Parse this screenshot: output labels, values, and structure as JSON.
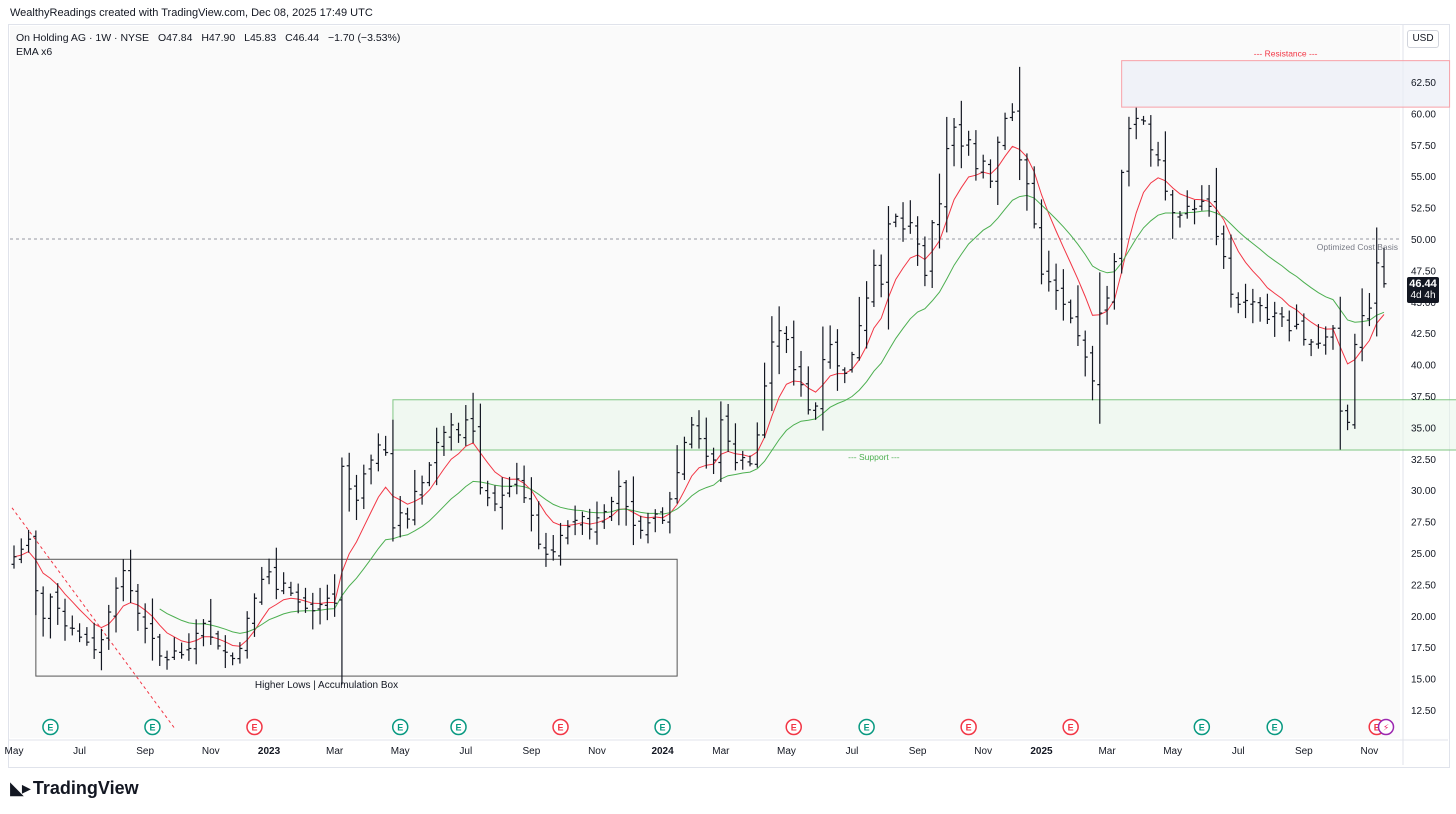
{
  "header": {
    "caption": "WealthyReadings created with TradingView.com, Dec 08, 2025 17:49 UTC"
  },
  "legend": {
    "symbol": "On Holding AG · 1W · NYSE",
    "open": "O47.84",
    "high": "H47.90",
    "low": "L45.83",
    "close": "C46.44",
    "change": "−1.70 (−3.53%)",
    "indicator": "EMA x6"
  },
  "toolbar": {
    "currency": "USD"
  },
  "price_badge": {
    "price": "46.44",
    "countdown": "4d 4h"
  },
  "footer": {
    "brand": "TradingView"
  },
  "colors": {
    "candles": "#131722",
    "ema_fast": "#f23645",
    "ema_slow": "#4caf50",
    "resistance_box_border": "#f7a1a8",
    "support_box_border": "#81c784",
    "accum_box_border": "#555555",
    "earnings_up": "#089981",
    "earnings_down": "#f23645"
  },
  "chart_data": {
    "type": "candlestick-ohlc-bars",
    "title": "On Holding AG · 1W · NYSE",
    "y_axis": {
      "min": 10,
      "max": 65,
      "ticks": [
        12.5,
        15.0,
        17.5,
        20.0,
        22.5,
        25.0,
        27.5,
        30.0,
        32.5,
        35.0,
        37.5,
        40.0,
        42.5,
        45.0,
        47.5,
        50.0,
        52.5,
        55.0,
        57.5,
        60.0,
        62.5
      ],
      "tick_labels": [
        "12.50",
        "15.00",
        "17.50",
        "20.00",
        "22.50",
        "25.00",
        "27.50",
        "30.00",
        "32.50",
        "35.00",
        "37.50",
        "40.00",
        "42.50",
        "45.00",
        "47.50",
        "50.00",
        "52.50",
        "55.00",
        "57.50",
        "60.00",
        "62.50"
      ]
    },
    "x_axis": {
      "labels": [
        "May",
        "Jul",
        "Sep",
        "Nov",
        "2023",
        "Mar",
        "May",
        "Jul",
        "Sep",
        "Nov",
        "2024",
        "Mar",
        "May",
        "Jul",
        "Sep",
        "Nov",
        "2025",
        "Mar",
        "May",
        "Jul",
        "Sep",
        "Nov"
      ],
      "bold": [
        "2023",
        "2024",
        "2025"
      ],
      "week_index": [
        0,
        9,
        18,
        27,
        35,
        44,
        53,
        62,
        71,
        80,
        89,
        97,
        106,
        115,
        124,
        133,
        141,
        150,
        159,
        168,
        177,
        186
      ]
    },
    "weekly_close": [
      24.7,
      25.3,
      26.1,
      22.0,
      19.8,
      21.5,
      20.6,
      19.2,
      19.0,
      18.3,
      17.9,
      17.3,
      18.1,
      20.3,
      22.2,
      23.6,
      22.0,
      20.2,
      19.0,
      18.2,
      16.8,
      16.5,
      17.2,
      16.9,
      17.4,
      18.6,
      19.4,
      18.3,
      17.6,
      17.1,
      16.6,
      17.4,
      19.8,
      21.4,
      22.9,
      23.5,
      22.1,
      22.6,
      21.8,
      21.1,
      20.6,
      20.4,
      20.9,
      21.4,
      21.0,
      31.9,
      30.1,
      29.2,
      31.3,
      32.4,
      33.6,
      33.0,
      27.0,
      28.2,
      27.7,
      29.9,
      30.6,
      32.0,
      33.8,
      34.6,
      35.2,
      34.4,
      35.6,
      34.7,
      30.2,
      29.4,
      28.9,
      29.6,
      30.3,
      30.9,
      29.4,
      28.0,
      25.7,
      24.9,
      25.1,
      26.4,
      27.1,
      27.6,
      27.9,
      26.9,
      27.8,
      28.3,
      29.1,
      30.3,
      28.7,
      27.2,
      26.8,
      27.4,
      28.1,
      27.6,
      29.3,
      31.4,
      33.8,
      35.2,
      34.1,
      32.7,
      32.4,
      35.6,
      33.9,
      32.2,
      32.6,
      32.1,
      34.4,
      38.3,
      41.8,
      42.7,
      42.0,
      39.6,
      38.4,
      36.4,
      36.7,
      40.4,
      41.6,
      39.9,
      39.3,
      40.8,
      43.1,
      45.3,
      47.9,
      46.4,
      51.2,
      51.8,
      50.8,
      51.3,
      49.6,
      47.1,
      51.3,
      52.8,
      57.2,
      58.9,
      57.4,
      57.9,
      55.6,
      56.2,
      54.6,
      57.7,
      59.6,
      60.1,
      56.3,
      54.4,
      51.2,
      47.2,
      46.6,
      45.9,
      44.8,
      43.7,
      42.3,
      40.6,
      38.7,
      44.1,
      45.3,
      48.2,
      55.3,
      58.8,
      59.6,
      59.4,
      57.1,
      56.3,
      53.8,
      52.1,
      51.9,
      52.6,
      52.4,
      53.0,
      52.6,
      50.2,
      48.6,
      45.6,
      44.8,
      45.1,
      45.0,
      44.7,
      43.6,
      44.1,
      43.8,
      42.7,
      43.2,
      42.0,
      41.8,
      41.7,
      42.2,
      42.9,
      36.3,
      35.4,
      41.6,
      43.9,
      44.5,
      48.1,
      46.44
    ],
    "series": [
      {
        "name": "On Holding AG",
        "type": "ohlc"
      },
      {
        "type": "ema"
      },
      {
        "type": "ema"
      },
      {
        "type": "ema"
      }
    ],
    "annotations": {
      "resistance_box": {
        "label": "--- Resistance ---",
        "y_low": 60.5,
        "y_high": 64.2,
        "week_start": 152,
        "week_end": 197
      },
      "support_box": {
        "label": "--- Support ---",
        "y_low": 33.2,
        "y_high": 37.2,
        "week_start": 52,
        "week_end": 203
      },
      "accumulation_box": {
        "label": "Higher Lows | Accumulation Box",
        "y_low": 15.2,
        "y_high": 24.5,
        "week_start": 3,
        "week_end": 91
      },
      "cost_basis_line": {
        "label": "Optimized Cost Basis",
        "y": 50.0
      }
    },
    "earnings_markers": [
      {
        "week": 5,
        "kind": "up"
      },
      {
        "week": 19,
        "kind": "up"
      },
      {
        "week": 33,
        "kind": "down"
      },
      {
        "week": 53,
        "kind": "up"
      },
      {
        "week": 61,
        "kind": "up"
      },
      {
        "week": 75,
        "kind": "down"
      },
      {
        "week": 89,
        "kind": "up"
      },
      {
        "week": 107,
        "kind": "down"
      },
      {
        "week": 117,
        "kind": "up"
      },
      {
        "week": 131,
        "kind": "down"
      },
      {
        "week": 145,
        "kind": "down"
      },
      {
        "week": 163,
        "kind": "up"
      },
      {
        "week": 173,
        "kind": "up"
      },
      {
        "week": 187,
        "kind": "down"
      },
      {
        "week": 201,
        "kind": "up"
      }
    ],
    "grid": false
  }
}
